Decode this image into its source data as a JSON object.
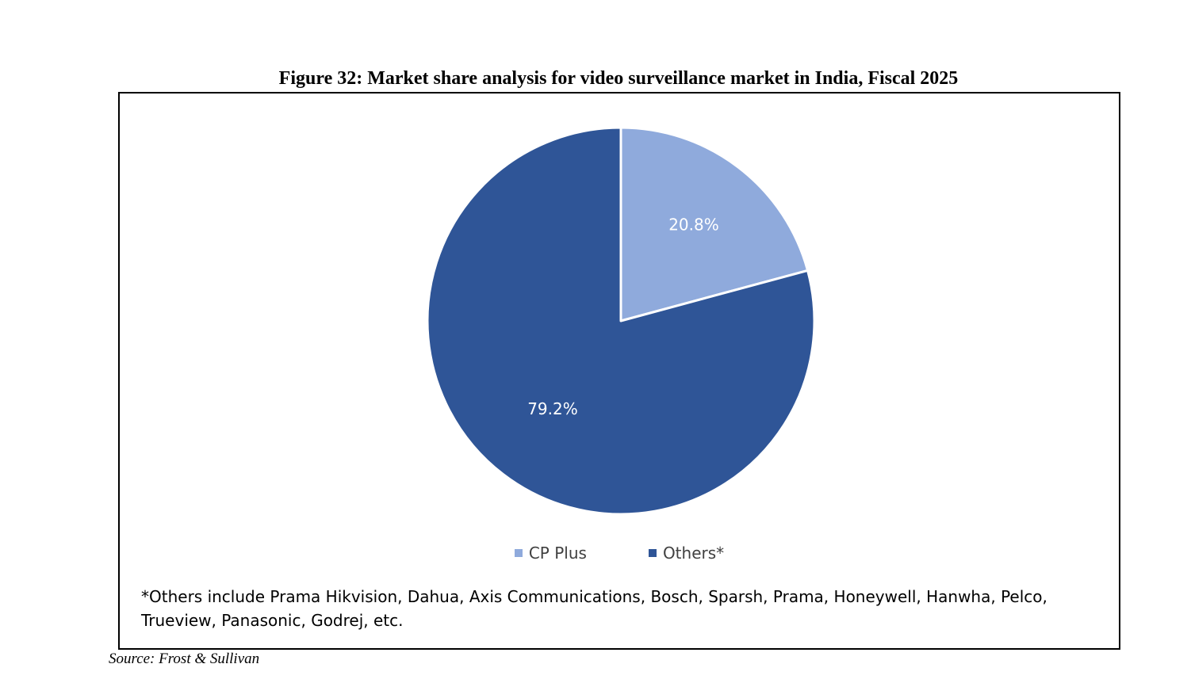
{
  "figure_title": "Figure 32: Market share analysis for video surveillance market in India, Fiscal 2025",
  "chart_data": {
    "type": "pie",
    "title": "",
    "categories": [
      "CP Plus",
      "Others*"
    ],
    "values": [
      20.8,
      79.2
    ],
    "labels": [
      "20.8%",
      "79.2%"
    ],
    "colors": [
      "#8faadc",
      "#2f5597"
    ],
    "legend_position": "bottom",
    "start": "top, clockwise"
  },
  "footnote": "*Others include Prama Hikvision, Dahua, Axis Communications, Bosch, Sparsh, Prama, Honeywell, Hanwha, Pelco, Trueview, Panasonic, Godrej, etc.",
  "source": "Source: Frost & Sullivan"
}
